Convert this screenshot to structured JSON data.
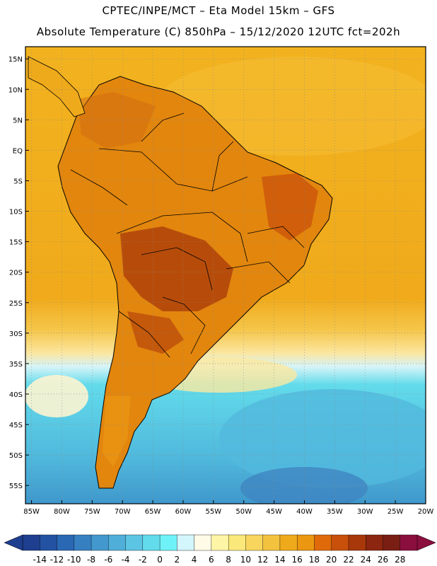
{
  "header": {
    "line1": "CPTEC/INPE/MCT –  Eta Model 15km – GFS",
    "line2": "Absolute Temperature (C) 850hPa – 15/12/2020 12UTC fct=202h"
  },
  "map": {
    "lat_labels": [
      "15N",
      "10N",
      "5N",
      "EQ",
      "5S",
      "10S",
      "15S",
      "20S",
      "25S",
      "30S",
      "35S",
      "40S",
      "45S",
      "50S",
      "55S"
    ],
    "lon_labels": [
      "85W",
      "80W",
      "75W",
      "70W",
      "65W",
      "60W",
      "55W",
      "50W",
      "45W",
      "40W",
      "35W",
      "30W",
      "25W",
      "20W"
    ],
    "lat_values": [
      15,
      10,
      5,
      0,
      -5,
      -10,
      -15,
      -20,
      -25,
      -30,
      -35,
      -40,
      -45,
      -50,
      -55
    ],
    "lon_values": [
      -85,
      -80,
      -75,
      -70,
      -65,
      -60,
      -55,
      -50,
      -45,
      -40,
      -35,
      -30,
      -25,
      -20
    ],
    "lat_range": [
      -58,
      17
    ],
    "lon_range": [
      -86,
      -20
    ],
    "grid": "dotted"
  },
  "colorbar": {
    "labels": [
      "-14",
      "-12",
      "-10",
      "-8",
      "-6",
      "-4",
      "-2",
      "0",
      "2",
      "4",
      "6",
      "8",
      "10",
      "12",
      "14",
      "16",
      "18",
      "20",
      "22",
      "24",
      "26",
      "28"
    ],
    "colors": [
      "#1e3f8f",
      "#2352a3",
      "#2a68b4",
      "#3680c2",
      "#4398cd",
      "#50afd9",
      "#5cc5e3",
      "#62dbeb",
      "#6ef2f8",
      "#d2f6fb",
      "#fffbe6",
      "#fff5a6",
      "#fbe87a",
      "#f8d55c",
      "#f3c23e",
      "#efaa1b",
      "#ec9712",
      "#e06a0a",
      "#c9500a",
      "#a8380a",
      "#8c2610",
      "#7a1e14",
      "#8a0e3e"
    ]
  },
  "theme": {
    "ocean_warm": "#f0ae1c",
    "ocean_cool": "#5cd8ea",
    "land_hot": "#a8380a",
    "border": "#000000"
  }
}
